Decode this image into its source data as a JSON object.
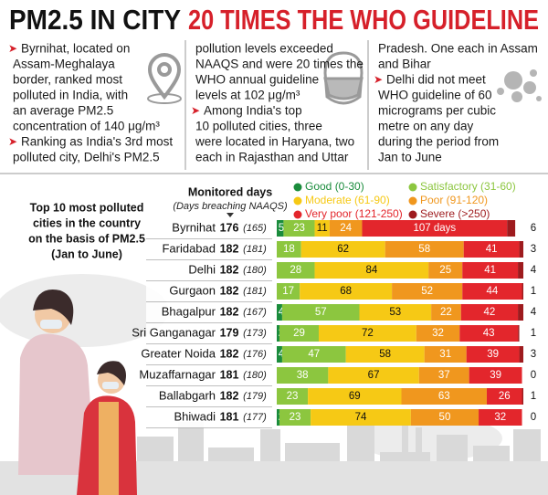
{
  "header": {
    "title_black": "PM2.5 IN CITY",
    "title_red": "20 TIMES THE WHO GUIDELINE"
  },
  "columns": [
    {
      "paragraphs": [
        {
          "bullet": true,
          "lines": [
            "Byrnihat, located on",
            "Assam-Meghalaya",
            "border, ranked most",
            "polluted in India, with",
            "an average PM2.5",
            "concentration of 140 μg/m³"
          ]
        },
        {
          "bullet": true,
          "lines": [
            "Ranking as India's 3rd most",
            "polluted city, Delhi's PM2.5"
          ]
        }
      ]
    },
    {
      "paragraphs": [
        {
          "bullet": false,
          "lines": [
            "pollution levels exceeded",
            "NAAQS and were 20 times the",
            "WHO annual guideline",
            "levels at 102 μg/m³"
          ]
        },
        {
          "bullet": true,
          "lines": [
            "Among India's top",
            "10 polluted cities, three",
            "were located in Haryana, two",
            "each in Rajasthan and Uttar"
          ]
        }
      ]
    },
    {
      "paragraphs": [
        {
          "bullet": false,
          "lines": [
            "Pradesh. One each in Assam",
            "and Bihar"
          ]
        },
        {
          "bullet": true,
          "lines": [
            "Delhi did not meet",
            "WHO guideline of 60",
            "micrograms per cubic",
            "metre on any day",
            "during the period from",
            "Jan to June"
          ]
        }
      ]
    }
  ],
  "bullet_symbol": "➤",
  "chart_data": {
    "type": "stacked-bar",
    "orientation": "horizontal",
    "title_lines": [
      "Top 10 most polluted",
      "cities in the country",
      "on the basis of PM2.5",
      "(Jan to June)"
    ],
    "column_header": "Monitored days",
    "column_subheader": "(Days breaching NAAQS)",
    "categories": [
      "Byrnihat",
      "Faridabad",
      "Delhi",
      "Gurgaon",
      "Bhagalpur",
      "Sri Ganganagar",
      "Greater Noida",
      "Muzaffarnagar",
      "Ballabgarh",
      "Bhiwadi"
    ],
    "monitored_days": [
      176,
      182,
      182,
      182,
      182,
      179,
      182,
      181,
      182,
      181
    ],
    "breaching_days": [
      {
        "value": 165,
        "label": "(165)"
      },
      {
        "value": 181,
        "label": "(181)"
      },
      {
        "value": 180,
        "label": "(180)"
      },
      {
        "value": 181,
        "label": "(181)"
      },
      {
        "value": 167,
        "label": "(167)"
      },
      {
        "value": 173,
        "label": "(173)"
      },
      {
        "value": 176,
        "label": "(176)"
      },
      {
        "value": 180,
        "label": "(180)"
      },
      {
        "value": 179,
        "label": "(179)"
      },
      {
        "value": 177,
        "label": "(177)"
      }
    ],
    "xlim": [
      0,
      182
    ],
    "series": [
      {
        "name": "Good (0-30)",
        "color": "#1a8c3c",
        "values": [
          5,
          0,
          0,
          0,
          4,
          2,
          4,
          0,
          0,
          2
        ]
      },
      {
        "name": "Satisfactory (31-60)",
        "color": "#8cc63f",
        "values": [
          23,
          18,
          28,
          17,
          57,
          29,
          47,
          38,
          23,
          23
        ]
      },
      {
        "name": "Moderate (61-90)",
        "color": "#f6c915",
        "values": [
          11,
          62,
          84,
          68,
          53,
          72,
          58,
          67,
          69,
          74
        ]
      },
      {
        "name": "Poor (91-120)",
        "color": "#f0971e",
        "values": [
          24,
          58,
          25,
          52,
          22,
          32,
          31,
          37,
          63,
          50
        ]
      },
      {
        "name": "Very poor (121-250)",
        "color": "#e3262c",
        "values": [
          107,
          41,
          41,
          44,
          42,
          43,
          39,
          39,
          26,
          32
        ],
        "value_labels": [
          "107 days",
          "41",
          "41",
          "44",
          "42",
          "43",
          "39",
          "39",
          "26",
          "32"
        ]
      },
      {
        "name": "Severe (>250)",
        "color": "#9e1b1e",
        "values": [
          6,
          3,
          4,
          1,
          4,
          1,
          3,
          0,
          1,
          0
        ]
      }
    ]
  }
}
